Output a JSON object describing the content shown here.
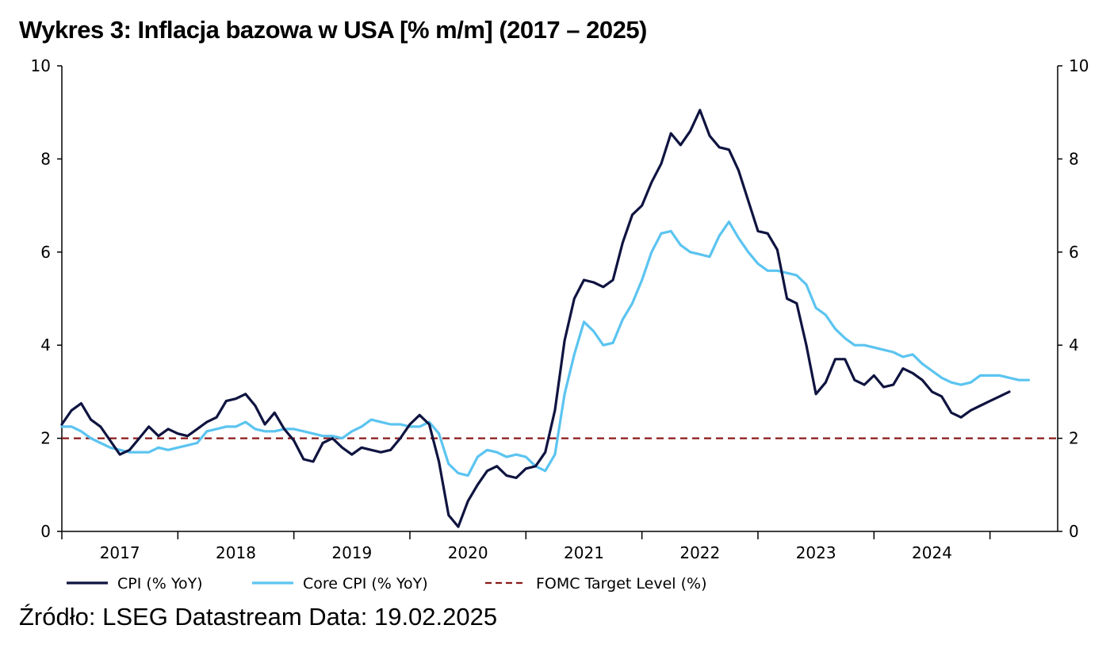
{
  "title": "Wykres 3: Inflacja bazowa w USA [% m/m] (2017 – 2025)",
  "source": "Źródło: LSEG Datastream Data: 19.02.2025",
  "colors": {
    "cpi": "#0f1440",
    "core": "#5bc4f0",
    "target": "#8b1a1a"
  },
  "chart_data": {
    "type": "line",
    "title": "Wykres 3: Inflacja bazowa w USA [% m/m] (2017 – 2025)",
    "xlim": [
      "2016-07",
      "2025-02"
    ],
    "ylim": [
      0,
      10
    ],
    "yticks": [
      "0",
      "2",
      "4",
      "6",
      "8",
      "10"
    ],
    "xticks": [
      "2017",
      "2018",
      "2019",
      "2020",
      "2021",
      "2022",
      "2023",
      "2024"
    ],
    "grid": false,
    "legend": "bottom",
    "series": [
      {
        "name": "CPI (% YoY)",
        "points": [
          [
            "2016-07",
            2.3
          ],
          [
            "2016-08",
            2.6
          ],
          [
            "2016-09",
            2.75
          ],
          [
            "2016-10",
            2.4
          ],
          [
            "2016-11",
            2.25
          ],
          [
            "2016-12",
            1.95
          ],
          [
            "2017-01",
            1.65
          ],
          [
            "2017-02",
            1.75
          ],
          [
            "2017-03",
            2.0
          ],
          [
            "2017-04",
            2.25
          ],
          [
            "2017-05",
            2.05
          ],
          [
            "2017-06",
            2.2
          ],
          [
            "2017-07",
            2.1
          ],
          [
            "2017-08",
            2.05
          ],
          [
            "2017-09",
            2.2
          ],
          [
            "2017-10",
            2.35
          ],
          [
            "2017-11",
            2.45
          ],
          [
            "2017-12",
            2.8
          ],
          [
            "2018-01",
            2.85
          ],
          [
            "2018-02",
            2.95
          ],
          [
            "2018-03",
            2.7
          ],
          [
            "2018-04",
            2.3
          ],
          [
            "2018-05",
            2.55
          ],
          [
            "2018-06",
            2.2
          ],
          [
            "2018-07",
            1.95
          ],
          [
            "2018-08",
            1.55
          ],
          [
            "2018-09",
            1.5
          ],
          [
            "2018-10",
            1.9
          ],
          [
            "2018-11",
            2.0
          ],
          [
            "2018-12",
            1.8
          ],
          [
            "2019-01",
            1.65
          ],
          [
            "2019-02",
            1.8
          ],
          [
            "2019-03",
            1.75
          ],
          [
            "2019-04",
            1.7
          ],
          [
            "2019-05",
            1.75
          ],
          [
            "2019-06",
            2.0
          ],
          [
            "2019-07",
            2.3
          ],
          [
            "2019-08",
            2.5
          ],
          [
            "2019-09",
            2.3
          ],
          [
            "2019-10",
            1.5
          ],
          [
            "2019-11",
            0.35
          ],
          [
            "2019-12",
            0.1
          ],
          [
            "2020-01",
            0.65
          ],
          [
            "2020-02",
            1.0
          ],
          [
            "2020-03",
            1.3
          ],
          [
            "2020-04",
            1.4
          ],
          [
            "2020-05",
            1.2
          ],
          [
            "2020-06",
            1.15
          ],
          [
            "2020-07",
            1.35
          ],
          [
            "2020-08",
            1.4
          ],
          [
            "2020-09",
            1.7
          ],
          [
            "2020-10",
            2.6
          ],
          [
            "2020-11",
            4.1
          ],
          [
            "2020-12",
            5.0
          ],
          [
            "2021-01",
            5.4
          ],
          [
            "2021-02",
            5.35
          ],
          [
            "2021-03",
            5.25
          ],
          [
            "2021-04",
            5.4
          ],
          [
            "2021-05",
            6.2
          ],
          [
            "2021-06",
            6.8
          ],
          [
            "2021-07",
            7.0
          ],
          [
            "2021-08",
            7.5
          ],
          [
            "2021-09",
            7.9
          ],
          [
            "2021-10",
            8.55
          ],
          [
            "2021-11",
            8.3
          ],
          [
            "2021-12",
            8.6
          ],
          [
            "2022-01",
            9.05
          ],
          [
            "2022-02",
            8.5
          ],
          [
            "2022-03",
            8.25
          ],
          [
            "2022-04",
            8.2
          ],
          [
            "2022-05",
            7.75
          ],
          [
            "2022-06",
            7.1
          ],
          [
            "2022-07",
            6.45
          ],
          [
            "2022-08",
            6.4
          ],
          [
            "2022-09",
            6.05
          ],
          [
            "2022-10",
            5.0
          ],
          [
            "2022-11",
            4.9
          ],
          [
            "2022-12",
            4.0
          ],
          [
            "2023-01",
            2.95
          ],
          [
            "2023-02",
            3.2
          ],
          [
            "2023-03",
            3.7
          ],
          [
            "2023-04",
            3.7
          ],
          [
            "2023-05",
            3.25
          ],
          [
            "2023-06",
            3.15
          ],
          [
            "2023-07",
            3.35
          ],
          [
            "2023-08",
            3.1
          ],
          [
            "2023-09",
            3.15
          ],
          [
            "2023-10",
            3.5
          ],
          [
            "2023-11",
            3.4
          ],
          [
            "2023-12",
            3.25
          ],
          [
            "2024-01",
            3.0
          ],
          [
            "2024-02",
            2.9
          ],
          [
            "2024-03",
            2.55
          ],
          [
            "2024-04",
            2.45
          ],
          [
            "2024-05",
            2.6
          ],
          [
            "2024-06",
            2.7
          ],
          [
            "2024-07",
            2.8
          ],
          [
            "2024-08",
            2.9
          ],
          [
            "2024-09",
            3.0
          ]
        ]
      },
      {
        "name": "Core CPI (% YoY)",
        "points": [
          [
            "2016-07",
            2.25
          ],
          [
            "2016-08",
            2.25
          ],
          [
            "2016-09",
            2.15
          ],
          [
            "2016-10",
            2.0
          ],
          [
            "2016-11",
            1.9
          ],
          [
            "2016-12",
            1.8
          ],
          [
            "2017-01",
            1.75
          ],
          [
            "2017-02",
            1.7
          ],
          [
            "2017-03",
            1.7
          ],
          [
            "2017-04",
            1.7
          ],
          [
            "2017-05",
            1.8
          ],
          [
            "2017-06",
            1.75
          ],
          [
            "2017-07",
            1.8
          ],
          [
            "2017-08",
            1.85
          ],
          [
            "2017-09",
            1.9
          ],
          [
            "2017-10",
            2.15
          ],
          [
            "2017-11",
            2.2
          ],
          [
            "2017-12",
            2.25
          ],
          [
            "2018-01",
            2.25
          ],
          [
            "2018-02",
            2.35
          ],
          [
            "2018-03",
            2.2
          ],
          [
            "2018-04",
            2.15
          ],
          [
            "2018-05",
            2.15
          ],
          [
            "2018-06",
            2.2
          ],
          [
            "2018-07",
            2.2
          ],
          [
            "2018-08",
            2.15
          ],
          [
            "2018-09",
            2.1
          ],
          [
            "2018-10",
            2.05
          ],
          [
            "2018-11",
            2.05
          ],
          [
            "2018-12",
            2.0
          ],
          [
            "2019-01",
            2.15
          ],
          [
            "2019-02",
            2.25
          ],
          [
            "2019-03",
            2.4
          ],
          [
            "2019-04",
            2.35
          ],
          [
            "2019-05",
            2.3
          ],
          [
            "2019-06",
            2.3
          ],
          [
            "2019-07",
            2.25
          ],
          [
            "2019-08",
            2.25
          ],
          [
            "2019-09",
            2.35
          ],
          [
            "2019-10",
            2.1
          ],
          [
            "2019-11",
            1.45
          ],
          [
            "2019-12",
            1.25
          ],
          [
            "2020-01",
            1.2
          ],
          [
            "2020-02",
            1.6
          ],
          [
            "2020-03",
            1.75
          ],
          [
            "2020-04",
            1.7
          ],
          [
            "2020-05",
            1.6
          ],
          [
            "2020-06",
            1.65
          ],
          [
            "2020-07",
            1.6
          ],
          [
            "2020-08",
            1.4
          ],
          [
            "2020-09",
            1.3
          ],
          [
            "2020-10",
            1.65
          ],
          [
            "2020-11",
            2.95
          ],
          [
            "2020-12",
            3.8
          ],
          [
            "2021-01",
            4.5
          ],
          [
            "2021-02",
            4.3
          ],
          [
            "2021-03",
            4.0
          ],
          [
            "2021-04",
            4.05
          ],
          [
            "2021-05",
            4.55
          ],
          [
            "2021-06",
            4.9
          ],
          [
            "2021-07",
            5.4
          ],
          [
            "2021-08",
            6.0
          ],
          [
            "2021-09",
            6.4
          ],
          [
            "2021-10",
            6.45
          ],
          [
            "2021-11",
            6.15
          ],
          [
            "2021-12",
            6.0
          ],
          [
            "2022-01",
            5.95
          ],
          [
            "2022-02",
            5.9
          ],
          [
            "2022-03",
            6.35
          ],
          [
            "2022-04",
            6.65
          ],
          [
            "2022-05",
            6.3
          ],
          [
            "2022-06",
            6.0
          ],
          [
            "2022-07",
            5.75
          ],
          [
            "2022-08",
            5.6
          ],
          [
            "2022-09",
            5.6
          ],
          [
            "2022-10",
            5.55
          ],
          [
            "2022-11",
            5.5
          ],
          [
            "2022-12",
            5.3
          ],
          [
            "2023-01",
            4.8
          ],
          [
            "2023-02",
            4.65
          ],
          [
            "2023-03",
            4.35
          ],
          [
            "2023-04",
            4.15
          ],
          [
            "2023-05",
            4.0
          ],
          [
            "2023-06",
            4.0
          ],
          [
            "2023-07",
            3.95
          ],
          [
            "2023-08",
            3.9
          ],
          [
            "2023-09",
            3.85
          ],
          [
            "2023-10",
            3.75
          ],
          [
            "2023-11",
            3.8
          ],
          [
            "2023-12",
            3.6
          ],
          [
            "2024-01",
            3.45
          ],
          [
            "2024-02",
            3.3
          ],
          [
            "2024-03",
            3.2
          ],
          [
            "2024-04",
            3.15
          ],
          [
            "2024-05",
            3.2
          ],
          [
            "2024-06",
            3.35
          ],
          [
            "2024-07",
            3.35
          ],
          [
            "2024-08",
            3.35
          ],
          [
            "2024-09",
            3.3
          ],
          [
            "2024-10",
            3.25
          ],
          [
            "2024-11",
            3.25
          ]
        ]
      },
      {
        "name": "FOMC Target Level (%)",
        "points": [
          [
            "2016-07",
            2.0
          ],
          [
            "2025-02",
            2.0
          ]
        ]
      }
    ]
  }
}
